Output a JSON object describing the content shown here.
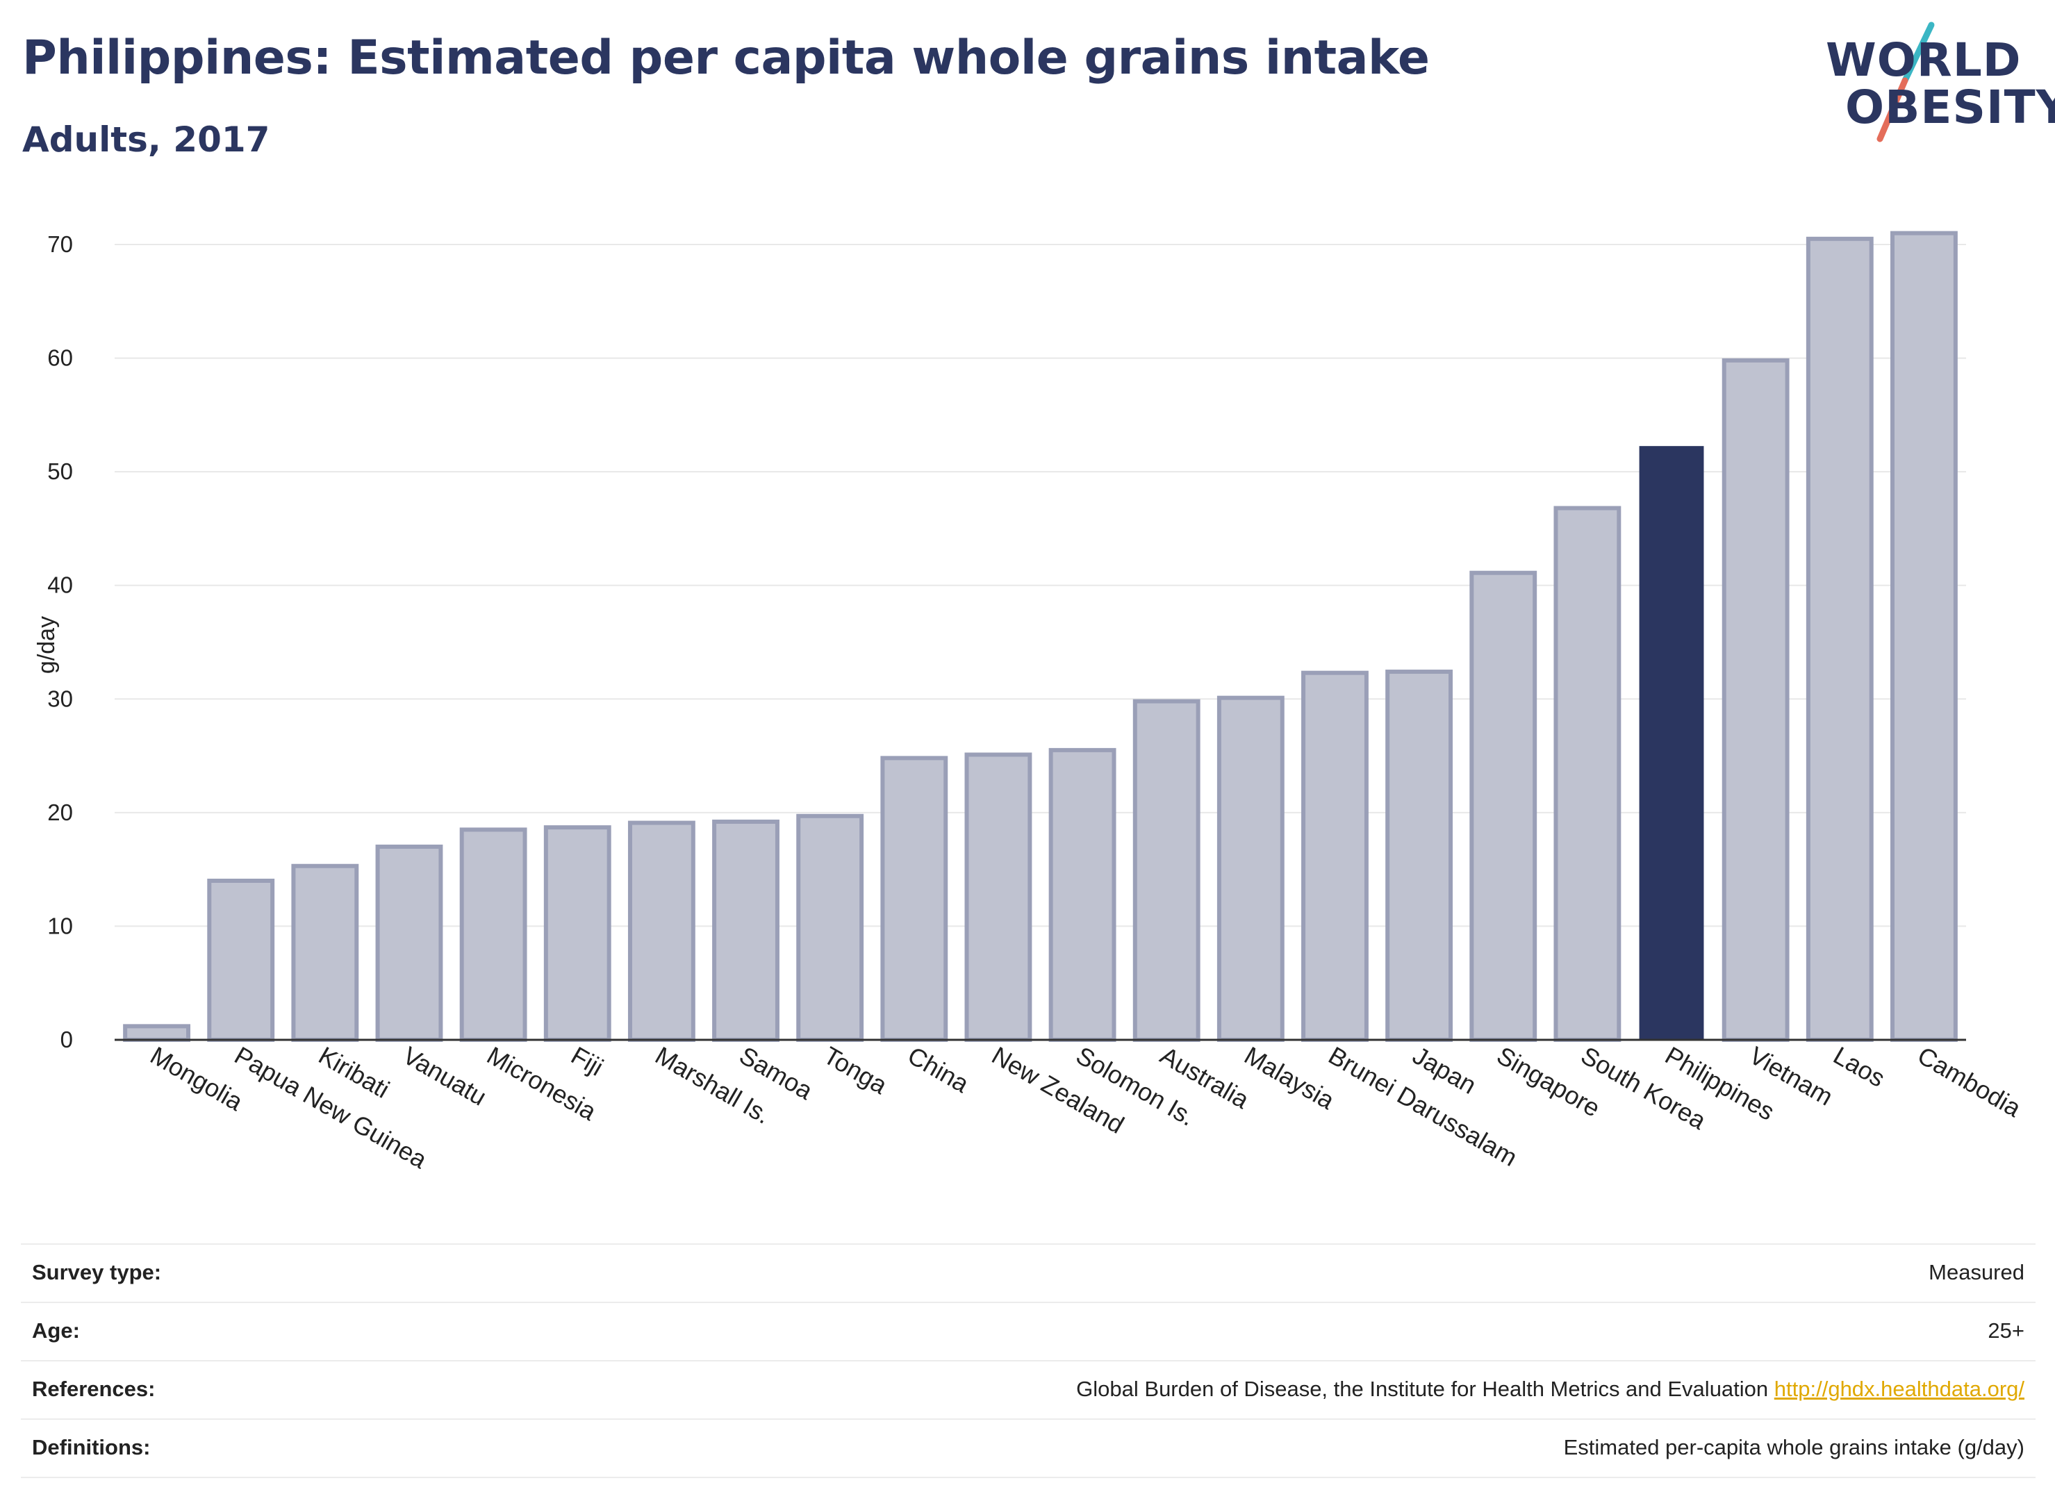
{
  "header": {
    "title": "Philippines: Estimated per capita whole grains intake",
    "subtitle": "Adults, 2017"
  },
  "logo": {
    "line1": "WORLD",
    "line2": "OBESITY",
    "text_color": "#2b3660",
    "slash_colors": [
      "#3bb6c4",
      "#e46d5a"
    ]
  },
  "chart_data": {
    "type": "bar",
    "categories": [
      "Mongolia",
      "Papua New Guinea",
      "Kiribati",
      "Vanuatu",
      "Micronesia",
      "Fiji",
      "Marshall Is.",
      "Samoa",
      "Tonga",
      "China",
      "New Zealand",
      "Solomon Is.",
      "Australia",
      "Malaysia",
      "Brunei Darussalam",
      "Japan",
      "Singapore",
      "South Korea",
      "Philippines",
      "Vietnam",
      "Laos",
      "Cambodia"
    ],
    "values": [
      1.2,
      14.0,
      15.3,
      17.0,
      18.5,
      18.7,
      19.1,
      19.2,
      19.7,
      24.8,
      25.1,
      25.5,
      29.8,
      30.1,
      32.3,
      32.4,
      41.1,
      46.8,
      52.2,
      59.8,
      70.5,
      71.0
    ],
    "highlight": "Philippines",
    "ylabel": "g/day",
    "xlabel": "",
    "ylim": [
      0,
      75
    ],
    "yticks": [
      0,
      10,
      20,
      30,
      40,
      50,
      60,
      70
    ],
    "grid": true,
    "colors": {
      "bar": "#bfc2d0",
      "bar_edge": "#9a9fb7",
      "highlight": "#2b3660",
      "grid": "#e8e8e8",
      "axis": "#333333"
    }
  },
  "metadata": [
    {
      "label": "Survey type:",
      "value": "Measured"
    },
    {
      "label": "Age:",
      "value": "25+"
    },
    {
      "label": "References:",
      "value": "Global Burden of Disease, the Institute for Health Metrics and Evaluation",
      "link": "http://ghdx.healthdata.org/"
    },
    {
      "label": "Definitions:",
      "value": "Estimated per-capita whole grains intake (g/day)"
    }
  ]
}
